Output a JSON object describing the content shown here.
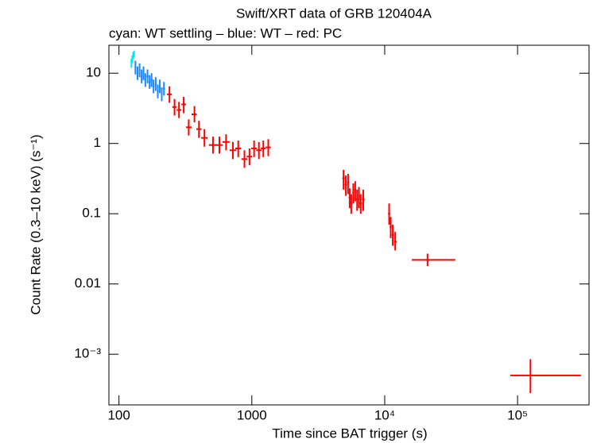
{
  "chart_data": {
    "type": "scatter",
    "title": "Swift/XRT data of GRB 120404A",
    "subtitle": "cyan: WT settling – blue: WT – red: PC",
    "x_label": "Time since BAT trigger (s)",
    "y_label": "Count Rate (0.3–10 keV) (s⁻¹)",
    "log_x": true,
    "log_y": true,
    "xlim": [
      84,
      345000
    ],
    "ylim": [
      0.00019,
      25
    ],
    "xticks": [
      100,
      1000,
      {
        "value": 10000,
        "label": "10⁴"
      },
      {
        "value": 100000,
        "label": "10⁵"
      }
    ],
    "yticks": [
      {
        "value": 0.001,
        "label": "10⁻³"
      },
      0.01,
      0.1,
      1,
      10
    ],
    "series": [
      {
        "name": "WT settling",
        "color": "#00e5ff",
        "x": [
          124,
          126,
          128,
          130
        ],
        "values": [
          14,
          16,
          18,
          19
        ],
        "xlow": [
          123,
          125,
          127,
          129
        ],
        "xhigh": [
          125,
          127,
          129,
          131
        ],
        "ylow": [
          12,
          14,
          16,
          17
        ],
        "yhigh": [
          16,
          18,
          20,
          21
        ]
      },
      {
        "name": "WT",
        "color": "#1e88ff",
        "x": [
          133,
          138,
          143,
          148,
          153,
          158,
          164,
          170,
          176,
          182,
          189,
          196,
          203,
          210,
          218
        ],
        "values": [
          12,
          10,
          11,
          9,
          10,
          8,
          9,
          7.5,
          8,
          6.5,
          7,
          5.5,
          6.5,
          5,
          6
        ],
        "xlow": [
          131,
          136,
          141,
          146,
          151,
          156,
          161,
          167,
          173,
          179,
          186,
          193,
          200,
          207,
          214
        ],
        "xhigh": [
          135,
          140,
          145,
          150,
          155,
          160,
          167,
          173,
          179,
          185,
          192,
          199,
          206,
          213,
          222
        ],
        "ylow": [
          9.6,
          8,
          8.8,
          7.2,
          8,
          6.4,
          7.2,
          6,
          6.4,
          5.2,
          5.6,
          4.4,
          5.2,
          4,
          4.8
        ],
        "yhigh": [
          15,
          12.5,
          13.8,
          11.3,
          12.5,
          10,
          11.3,
          9.4,
          10,
          8.1,
          8.8,
          6.9,
          8.1,
          6.3,
          7.5
        ]
      },
      {
        "name": "PC",
        "color": "#ff0000",
        "x": [
          240,
          262,
          283,
          307,
          335,
          370,
          400,
          440,
          510,
          570,
          640,
          720,
          790,
          880,
          960,
          1040,
          1130,
          1220,
          1330,
          4900,
          5100,
          5300,
          5450,
          5600,
          5800,
          6000,
          6200,
          6400,
          6600,
          6900,
          10800,
          11100,
          11500,
          12000,
          21000,
          125000
        ],
        "values": [
          5.0,
          3.3,
          3.0,
          3.6,
          1.7,
          2.6,
          1.6,
          1.2,
          0.95,
          0.95,
          1.05,
          0.8,
          0.85,
          0.6,
          0.65,
          0.85,
          0.8,
          0.85,
          0.88,
          0.32,
          0.26,
          0.28,
          0.17,
          0.14,
          0.2,
          0.22,
          0.16,
          0.18,
          0.14,
          0.16,
          0.1,
          0.065,
          0.05,
          0.04,
          0.022,
          0.0005
        ],
        "xlow": [
          230,
          252,
          272,
          295,
          320,
          352,
          382,
          415,
          475,
          535,
          600,
          680,
          750,
          835,
          915,
          990,
          1080,
          1170,
          1270,
          4800,
          5000,
          5200,
          5350,
          5500,
          5700,
          5900,
          6100,
          6300,
          6500,
          6750,
          10600,
          10900,
          11300,
          11800,
          16000,
          88000
        ],
        "xhigh": [
          250,
          272,
          295,
          320,
          352,
          385,
          418,
          465,
          545,
          605,
          680,
          760,
          830,
          925,
          1005,
          1090,
          1180,
          1270,
          1390,
          5000,
          5200,
          5400,
          5550,
          5700,
          5900,
          6100,
          6300,
          6500,
          6750,
          7050,
          11000,
          11300,
          11700,
          12300,
          34000,
          300000
        ],
        "ylow": [
          3.8,
          2.5,
          2.3,
          2.7,
          1.3,
          2.0,
          1.2,
          0.9,
          0.72,
          0.72,
          0.8,
          0.6,
          0.64,
          0.45,
          0.49,
          0.64,
          0.6,
          0.64,
          0.66,
          0.22,
          0.18,
          0.19,
          0.12,
          0.1,
          0.14,
          0.15,
          0.11,
          0.12,
          0.1,
          0.11,
          0.07,
          0.045,
          0.035,
          0.03,
          0.018,
          0.00028
        ],
        "yhigh": [
          6.5,
          4.3,
          3.9,
          4.6,
          2.2,
          3.4,
          2.1,
          1.6,
          1.25,
          1.25,
          1.35,
          1.05,
          1.1,
          0.8,
          0.85,
          1.1,
          1.05,
          1.1,
          1.15,
          0.42,
          0.35,
          0.37,
          0.23,
          0.19,
          0.27,
          0.29,
          0.22,
          0.24,
          0.19,
          0.22,
          0.14,
          0.09,
          0.07,
          0.055,
          0.027,
          0.00085
        ]
      }
    ]
  }
}
